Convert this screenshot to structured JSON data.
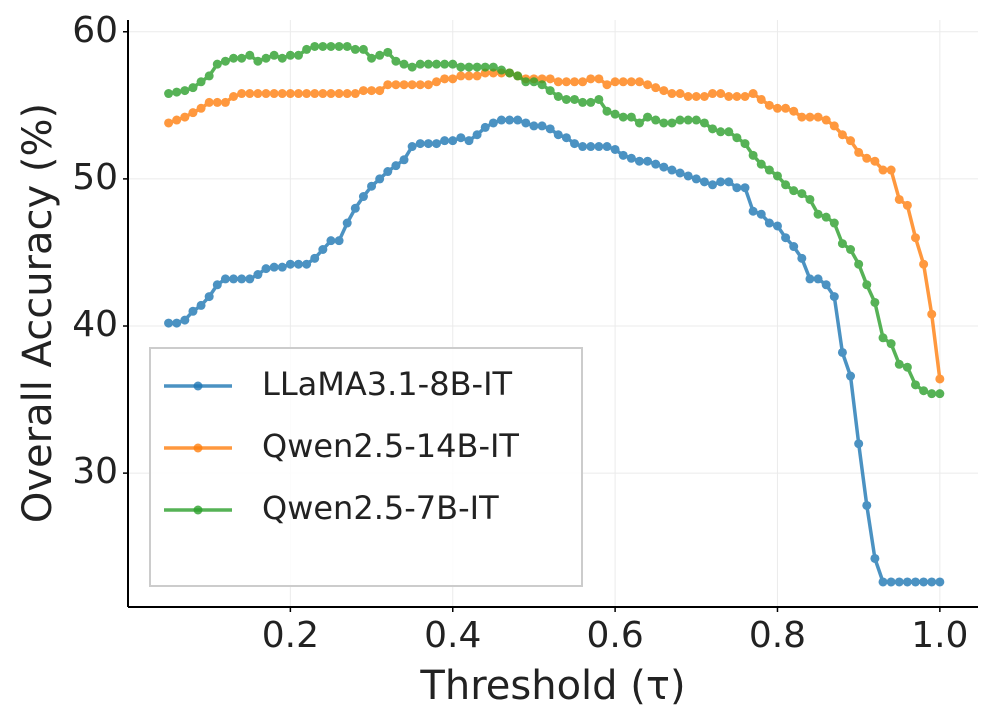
{
  "chart_data": {
    "type": "line",
    "xlabel": "Threshold (τ)",
    "ylabel": "Overall Accuracy (%)",
    "x": [
      0.05,
      0.06,
      0.07,
      0.08,
      0.09,
      0.1,
      0.11,
      0.12,
      0.13,
      0.14,
      0.15,
      0.16,
      0.17,
      0.18,
      0.19,
      0.2,
      0.21,
      0.22,
      0.23,
      0.24,
      0.25,
      0.26,
      0.27,
      0.28,
      0.29,
      0.3,
      0.31,
      0.32,
      0.33,
      0.34,
      0.35,
      0.36,
      0.37,
      0.38,
      0.39,
      0.4,
      0.41,
      0.42,
      0.43,
      0.44,
      0.45,
      0.46,
      0.47,
      0.48,
      0.49,
      0.5,
      0.51,
      0.52,
      0.53,
      0.54,
      0.55,
      0.56,
      0.57,
      0.58,
      0.59,
      0.6,
      0.61,
      0.62,
      0.63,
      0.64,
      0.65,
      0.66,
      0.67,
      0.68,
      0.69,
      0.7,
      0.71,
      0.72,
      0.73,
      0.74,
      0.75,
      0.76,
      0.77,
      0.78,
      0.79,
      0.8,
      0.81,
      0.82,
      0.83,
      0.84,
      0.85,
      0.86,
      0.87,
      0.88,
      0.89,
      0.9,
      0.91,
      0.92,
      0.93,
      0.94,
      0.95,
      0.96,
      0.97,
      0.98,
      0.99,
      1.0
    ],
    "series": [
      {
        "name": "LLaMA3.1-8B-IT",
        "color": "#1f77b4",
        "values": [
          40.2,
          40.2,
          40.4,
          41.0,
          41.4,
          42.0,
          42.8,
          43.2,
          43.2,
          43.2,
          43.2,
          43.5,
          43.9,
          44.0,
          44.0,
          44.2,
          44.2,
          44.2,
          44.6,
          45.2,
          45.8,
          45.8,
          47.0,
          48.0,
          48.8,
          49.5,
          50.0,
          50.5,
          50.9,
          51.3,
          52.2,
          52.4,
          52.4,
          52.4,
          52.6,
          52.6,
          52.8,
          52.6,
          53.0,
          53.5,
          53.8,
          54.0,
          54.0,
          54.0,
          53.8,
          53.6,
          53.6,
          53.4,
          53.0,
          52.8,
          52.4,
          52.2,
          52.2,
          52.2,
          52.2,
          52.0,
          51.6,
          51.4,
          51.2,
          51.2,
          51.0,
          50.8,
          50.6,
          50.4,
          50.2,
          50.0,
          49.8,
          49.6,
          49.8,
          49.8,
          49.4,
          49.4,
          47.8,
          47.6,
          47.0,
          46.8,
          46.0,
          45.4,
          44.6,
          43.2,
          43.2,
          42.8,
          42.0,
          38.2,
          36.6,
          32.0,
          27.8,
          24.2,
          22.6,
          22.6,
          22.6,
          22.6,
          22.6,
          22.6,
          22.6,
          22.6
        ]
      },
      {
        "name": "Qwen2.5-14B-IT",
        "color": "#ff7f0e",
        "values": [
          53.8,
          54.0,
          54.2,
          54.5,
          54.8,
          55.2,
          55.2,
          55.2,
          55.6,
          55.8,
          55.8,
          55.8,
          55.8,
          55.8,
          55.8,
          55.8,
          55.8,
          55.8,
          55.8,
          55.8,
          55.8,
          55.8,
          55.8,
          55.8,
          56.0,
          56.0,
          56.0,
          56.4,
          56.4,
          56.4,
          56.4,
          56.4,
          56.4,
          56.6,
          56.8,
          56.8,
          57.0,
          57.0,
          57.0,
          57.2,
          57.2,
          57.2,
          57.2,
          57.0,
          56.8,
          56.8,
          56.8,
          56.8,
          56.6,
          56.6,
          56.6,
          56.6,
          56.8,
          56.8,
          56.4,
          56.6,
          56.6,
          56.6,
          56.6,
          56.4,
          56.2,
          56.0,
          55.8,
          55.8,
          55.6,
          55.6,
          55.6,
          55.8,
          55.8,
          55.6,
          55.6,
          55.6,
          55.8,
          55.4,
          55.0,
          54.8,
          54.8,
          54.6,
          54.2,
          54.2,
          54.2,
          54.0,
          53.6,
          53.0,
          52.6,
          51.8,
          51.4,
          51.2,
          50.6,
          50.6,
          48.6,
          48.2,
          46.0,
          44.2,
          40.8,
          36.4
        ]
      },
      {
        "name": "Qwen2.5-7B-IT",
        "color": "#2ca02c",
        "values": [
          55.8,
          55.9,
          56.0,
          56.2,
          56.6,
          57.0,
          57.8,
          58.0,
          58.2,
          58.2,
          58.4,
          58.0,
          58.2,
          58.4,
          58.2,
          58.4,
          58.4,
          58.8,
          59.0,
          59.0,
          59.0,
          59.0,
          59.0,
          58.8,
          58.8,
          58.2,
          58.4,
          58.6,
          58.0,
          57.8,
          57.6,
          57.8,
          57.8,
          57.8,
          57.8,
          57.8,
          57.6,
          57.6,
          57.6,
          57.6,
          57.6,
          57.4,
          57.2,
          57.0,
          56.6,
          56.6,
          56.4,
          56.0,
          55.6,
          55.4,
          55.4,
          55.2,
          55.2,
          55.4,
          54.6,
          54.4,
          54.2,
          54.2,
          53.8,
          54.2,
          54.0,
          53.8,
          53.8,
          54.0,
          54.0,
          54.0,
          53.8,
          53.4,
          53.2,
          53.2,
          52.8,
          52.4,
          51.6,
          51.0,
          50.6,
          50.2,
          49.6,
          49.2,
          49.0,
          48.6,
          47.6,
          47.4,
          47.0,
          45.6,
          45.2,
          44.2,
          42.8,
          41.6,
          39.2,
          38.8,
          37.4,
          37.2,
          36.0,
          35.6,
          35.4,
          35.4
        ]
      }
    ],
    "xlim": [
      0.0,
      1.047
    ],
    "ylim": [
      20.9,
      60.8
    ],
    "xticks": [
      0.2,
      0.4,
      0.6,
      0.8,
      {
        "value": 1.0,
        "label": "1.0"
      }
    ],
    "yticks": [
      30,
      40,
      50,
      60
    ],
    "grid": true,
    "legend": "lower left"
  }
}
